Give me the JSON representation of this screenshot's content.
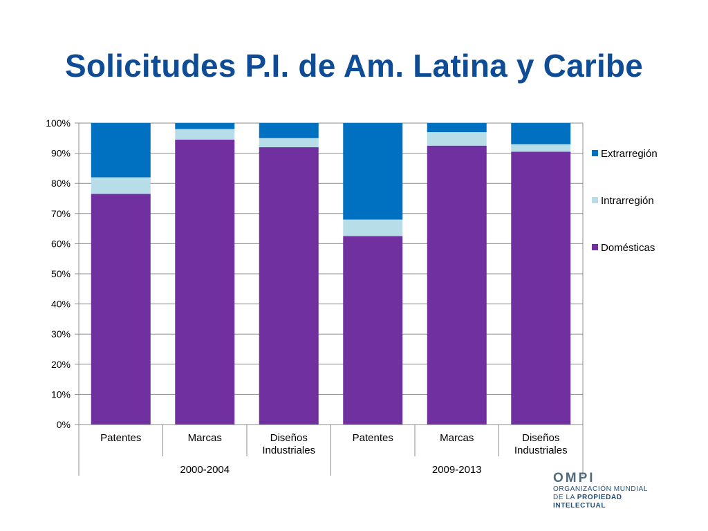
{
  "slide": {
    "title": "Solicitudes P.I. de Am. Latina y Caribe"
  },
  "logo": {
    "mark": "OMPI",
    "line1": "ORGANIZACIÓN MUNDIAL",
    "line2_prefix": "DE LA ",
    "line2_bold": "PROPIEDAD",
    "line3": "INTELECTUAL"
  },
  "chart_data": {
    "type": "bar",
    "stacked": "percent",
    "categories": [
      "Patentes",
      "Marcas",
      "Diseños Industriales",
      "Patentes",
      "Marcas",
      "Diseños Industriales"
    ],
    "groups": [
      {
        "label": "2000-2004",
        "categories": [
          0,
          1,
          2
        ]
      },
      {
        "label": "2009-2013",
        "categories": [
          3,
          4,
          5
        ]
      }
    ],
    "series": [
      {
        "name": "Domésticas",
        "color": "#7030a0",
        "values": [
          76.5,
          94.5,
          92.0,
          62.5,
          92.5,
          90.5
        ]
      },
      {
        "name": "Intrarregión",
        "color": "#b7dee8",
        "values": [
          5.5,
          3.5,
          3.0,
          5.5,
          4.5,
          2.5
        ]
      },
      {
        "name": "Extrarregión",
        "color": "#0070c0",
        "values": [
          18.0,
          2.0,
          5.0,
          32.0,
          3.0,
          7.0
        ]
      }
    ],
    "ylim": [
      0,
      100
    ],
    "yticks": [
      "0%",
      "10%",
      "20%",
      "30%",
      "40%",
      "50%",
      "60%",
      "70%",
      "80%",
      "90%",
      "100%"
    ],
    "grid": true,
    "legend": {
      "position": "right",
      "order": [
        "Extrarregión",
        "Intrarregión",
        "Domésticas"
      ]
    }
  }
}
